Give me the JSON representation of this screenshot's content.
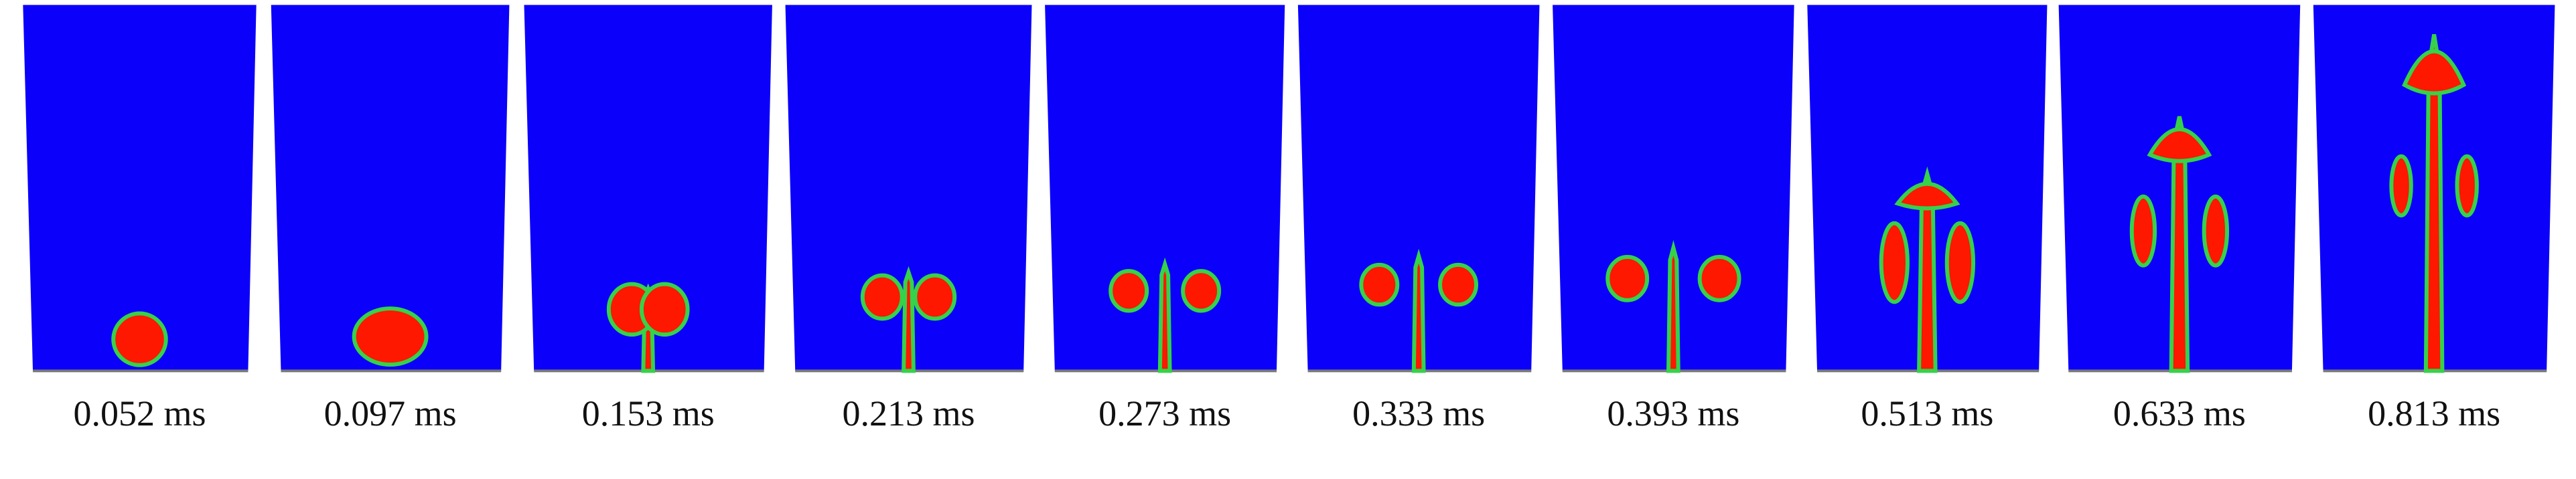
{
  "panels": [
    {
      "label": "0.052 ms"
    },
    {
      "label": "0.097 ms"
    },
    {
      "label": "0.153 ms"
    },
    {
      "label": "0.213 ms"
    },
    {
      "label": "0.273 ms"
    },
    {
      "label": "0.333 ms"
    },
    {
      "label": "0.393 ms"
    },
    {
      "label": "0.513 ms"
    },
    {
      "label": "0.633 ms"
    },
    {
      "label": "0.813 ms"
    }
  ]
}
